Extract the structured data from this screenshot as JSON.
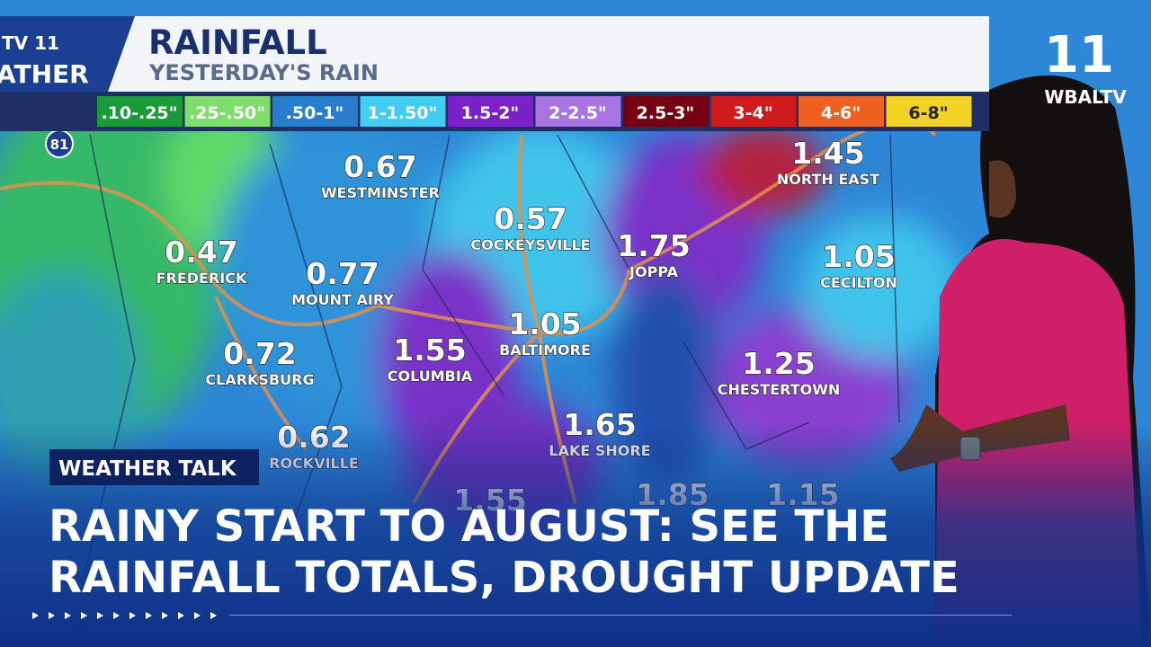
{
  "header": {
    "logo_left": "TV 11",
    "logo_left_sub": "ATHER",
    "title": "RAINFALL",
    "subtitle": "YESTERDAY'S RAIN"
  },
  "legend": [
    {
      "label": ".10-.25\"",
      "color": "#1b9a3a"
    },
    {
      "label": ".25-.50\"",
      "color": "#7ede6c"
    },
    {
      "label": ".50-1\"",
      "color": "#2a7ccc"
    },
    {
      "label": "1-1.50\"",
      "color": "#40cdf0"
    },
    {
      "label": "1.5-2\"",
      "color": "#7a22c8"
    },
    {
      "label": "2-2.5\"",
      "color": "#a874e2"
    },
    {
      "label": "2.5-3\"",
      "color": "#760012"
    },
    {
      "label": "3-4\"",
      "color": "#cf1b1b"
    },
    {
      "label": "4-6\"",
      "color": "#ef5f22"
    },
    {
      "label": "6-8\"",
      "color": "#f2d323"
    }
  ],
  "highway": "81",
  "stations": [
    {
      "value": 0.67,
      "name": "WESTMINSTER"
    },
    {
      "value": 0.57,
      "name": "COCKEYSVILLE"
    },
    {
      "value": 1.75,
      "name": "JOPPA"
    },
    {
      "value": 1.45,
      "name": "NORTH EAST"
    },
    {
      "value": 0.47,
      "name": "FREDERICK"
    },
    {
      "value": 0.77,
      "name": "MOUNT AIRY"
    },
    {
      "value": 1.05,
      "name": "CECILTON"
    },
    {
      "value": 1.05,
      "name": "BALTIMORE"
    },
    {
      "value": 0.72,
      "name": "CLARKSBURG"
    },
    {
      "value": 1.55,
      "name": "COLUMBIA"
    },
    {
      "value": 1.25,
      "name": "CHESTERTOWN"
    },
    {
      "value": 1.65,
      "name": "LAKE SHORE"
    },
    {
      "value": 0.62,
      "name": "ROCKVILLE"
    },
    {
      "value": 1.55
    },
    {
      "value": 1.85
    },
    {
      "value": 1.15
    }
  ],
  "station_logo": {
    "number": "11",
    "name": "WBALTV"
  },
  "tag": "WEATHER TALK",
  "headline": [
    "RAINY START TO AUGUST: SEE THE",
    "RAINFALL TOTALS, DROUGHT UPDATE"
  ]
}
